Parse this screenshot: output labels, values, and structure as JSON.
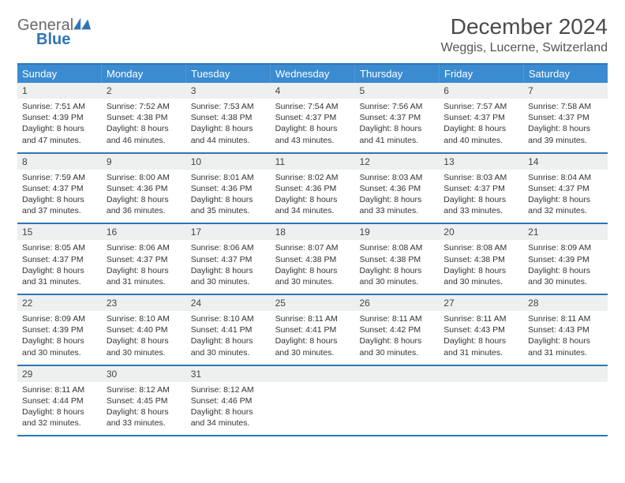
{
  "brand": {
    "general": "General",
    "blue": "Blue"
  },
  "title": "December 2024",
  "location": "Weggis, Lucerne, Switzerland",
  "colors": {
    "header_bg": "#3b8bd0",
    "rule": "#2f75b5",
    "daynum_bg": "#eef0f0",
    "text": "#333333",
    "logo_icon": "#2f75b5"
  },
  "layout": {
    "columns": 7,
    "rows": 5
  },
  "weekdays": [
    "Sunday",
    "Monday",
    "Tuesday",
    "Wednesday",
    "Thursday",
    "Friday",
    "Saturday"
  ],
  "weeks": [
    [
      {
        "n": "1",
        "sunrise": "7:51 AM",
        "sunset": "4:39 PM",
        "dayh": "8",
        "daym": "47"
      },
      {
        "n": "2",
        "sunrise": "7:52 AM",
        "sunset": "4:38 PM",
        "dayh": "8",
        "daym": "46"
      },
      {
        "n": "3",
        "sunrise": "7:53 AM",
        "sunset": "4:38 PM",
        "dayh": "8",
        "daym": "44"
      },
      {
        "n": "4",
        "sunrise": "7:54 AM",
        "sunset": "4:37 PM",
        "dayh": "8",
        "daym": "43"
      },
      {
        "n": "5",
        "sunrise": "7:56 AM",
        "sunset": "4:37 PM",
        "dayh": "8",
        "daym": "41"
      },
      {
        "n": "6",
        "sunrise": "7:57 AM",
        "sunset": "4:37 PM",
        "dayh": "8",
        "daym": "40"
      },
      {
        "n": "7",
        "sunrise": "7:58 AM",
        "sunset": "4:37 PM",
        "dayh": "8",
        "daym": "39"
      }
    ],
    [
      {
        "n": "8",
        "sunrise": "7:59 AM",
        "sunset": "4:37 PM",
        "dayh": "8",
        "daym": "37"
      },
      {
        "n": "9",
        "sunrise": "8:00 AM",
        "sunset": "4:36 PM",
        "dayh": "8",
        "daym": "36"
      },
      {
        "n": "10",
        "sunrise": "8:01 AM",
        "sunset": "4:36 PM",
        "dayh": "8",
        "daym": "35"
      },
      {
        "n": "11",
        "sunrise": "8:02 AM",
        "sunset": "4:36 PM",
        "dayh": "8",
        "daym": "34"
      },
      {
        "n": "12",
        "sunrise": "8:03 AM",
        "sunset": "4:36 PM",
        "dayh": "8",
        "daym": "33"
      },
      {
        "n": "13",
        "sunrise": "8:03 AM",
        "sunset": "4:37 PM",
        "dayh": "8",
        "daym": "33"
      },
      {
        "n": "14",
        "sunrise": "8:04 AM",
        "sunset": "4:37 PM",
        "dayh": "8",
        "daym": "32"
      }
    ],
    [
      {
        "n": "15",
        "sunrise": "8:05 AM",
        "sunset": "4:37 PM",
        "dayh": "8",
        "daym": "31"
      },
      {
        "n": "16",
        "sunrise": "8:06 AM",
        "sunset": "4:37 PM",
        "dayh": "8",
        "daym": "31"
      },
      {
        "n": "17",
        "sunrise": "8:06 AM",
        "sunset": "4:37 PM",
        "dayh": "8",
        "daym": "30"
      },
      {
        "n": "18",
        "sunrise": "8:07 AM",
        "sunset": "4:38 PM",
        "dayh": "8",
        "daym": "30"
      },
      {
        "n": "19",
        "sunrise": "8:08 AM",
        "sunset": "4:38 PM",
        "dayh": "8",
        "daym": "30"
      },
      {
        "n": "20",
        "sunrise": "8:08 AM",
        "sunset": "4:38 PM",
        "dayh": "8",
        "daym": "30"
      },
      {
        "n": "21",
        "sunrise": "8:09 AM",
        "sunset": "4:39 PM",
        "dayh": "8",
        "daym": "30"
      }
    ],
    [
      {
        "n": "22",
        "sunrise": "8:09 AM",
        "sunset": "4:39 PM",
        "dayh": "8",
        "daym": "30"
      },
      {
        "n": "23",
        "sunrise": "8:10 AM",
        "sunset": "4:40 PM",
        "dayh": "8",
        "daym": "30"
      },
      {
        "n": "24",
        "sunrise": "8:10 AM",
        "sunset": "4:41 PM",
        "dayh": "8",
        "daym": "30"
      },
      {
        "n": "25",
        "sunrise": "8:11 AM",
        "sunset": "4:41 PM",
        "dayh": "8",
        "daym": "30"
      },
      {
        "n": "26",
        "sunrise": "8:11 AM",
        "sunset": "4:42 PM",
        "dayh": "8",
        "daym": "30"
      },
      {
        "n": "27",
        "sunrise": "8:11 AM",
        "sunset": "4:43 PM",
        "dayh": "8",
        "daym": "31"
      },
      {
        "n": "28",
        "sunrise": "8:11 AM",
        "sunset": "4:43 PM",
        "dayh": "8",
        "daym": "31"
      }
    ],
    [
      {
        "n": "29",
        "sunrise": "8:11 AM",
        "sunset": "4:44 PM",
        "dayh": "8",
        "daym": "32"
      },
      {
        "n": "30",
        "sunrise": "8:12 AM",
        "sunset": "4:45 PM",
        "dayh": "8",
        "daym": "33"
      },
      {
        "n": "31",
        "sunrise": "8:12 AM",
        "sunset": "4:46 PM",
        "dayh": "8",
        "daym": "34"
      },
      null,
      null,
      null,
      null
    ]
  ]
}
